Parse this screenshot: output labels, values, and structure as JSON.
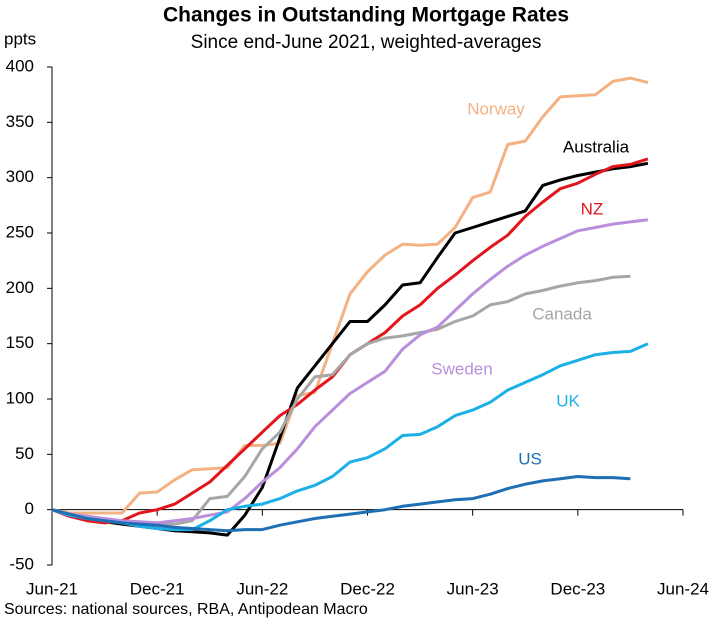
{
  "chart_data": {
    "type": "line",
    "title": "Changes in Outstanding Mortgage Rates",
    "subtitle": "Since end-June 2021, weighted-averages",
    "y_label": "ppts",
    "source": "Sources: national sources, RBA, Antipodean Macro",
    "x": [
      "2021-06",
      "2021-07",
      "2021-08",
      "2021-09",
      "2021-10",
      "2021-11",
      "2021-12",
      "2022-01",
      "2022-02",
      "2022-03",
      "2022-04",
      "2022-05",
      "2022-06",
      "2022-07",
      "2022-08",
      "2022-09",
      "2022-10",
      "2022-11",
      "2022-12",
      "2023-01",
      "2023-02",
      "2023-03",
      "2023-04",
      "2023-05",
      "2023-06",
      "2023-07",
      "2023-08",
      "2023-09",
      "2023-10",
      "2023-11",
      "2023-12",
      "2024-01",
      "2024-02",
      "2024-03",
      "2024-04"
    ],
    "xlim": [
      "2021-06",
      "2024-06"
    ],
    "xticks": [
      {
        "value": "2021-06",
        "label": "Jun-21"
      },
      {
        "value": "2021-12",
        "label": "Dec-21"
      },
      {
        "value": "2022-06",
        "label": "Jun-22"
      },
      {
        "value": "2022-12",
        "label": "Dec-22"
      },
      {
        "value": "2023-06",
        "label": "Jun-23"
      },
      {
        "value": "2023-12",
        "label": "Dec-23"
      },
      {
        "value": "2024-06",
        "label": "Jun-24"
      }
    ],
    "ylim": [
      -50,
      400
    ],
    "yticks": [
      -50,
      0,
      50,
      100,
      150,
      200,
      250,
      300,
      350,
      400
    ],
    "series": [
      {
        "name": "Norway",
        "color": "#f4b183",
        "values": [
          0,
          -3,
          -3,
          -3,
          -3,
          15,
          16,
          27,
          36,
          37,
          38,
          58,
          58,
          60,
          103,
          106,
          150,
          195,
          215,
          230,
          240,
          239,
          240,
          255,
          282,
          287,
          330,
          333,
          355,
          373,
          374,
          375,
          387,
          390,
          386
        ]
      },
      {
        "name": "Australia",
        "color": "#000000",
        "values": [
          0,
          -5,
          -8,
          -11,
          -13,
          -15,
          -17,
          -19,
          -20,
          -21,
          -23,
          -5,
          20,
          65,
          110,
          130,
          150,
          170,
          170,
          185,
          203,
          205,
          228,
          250,
          255,
          260,
          265,
          270,
          293,
          298,
          302,
          305,
          308,
          310,
          313
        ]
      },
      {
        "name": "NZ",
        "color": "#e3151c",
        "values": [
          0,
          -6,
          -10,
          -12,
          -10,
          -3,
          0,
          5,
          15,
          25,
          40,
          55,
          70,
          85,
          95,
          108,
          120,
          140,
          150,
          160,
          175,
          185,
          200,
          212,
          225,
          237,
          248,
          265,
          278,
          290,
          295,
          303,
          310,
          312,
          317
        ]
      },
      {
        "name": "Canada",
        "color": "#a6a6a6",
        "values": [
          0,
          -5,
          -8,
          -10,
          -12,
          -13,
          -12,
          -13,
          -10,
          10,
          12,
          30,
          55,
          70,
          100,
          120,
          122,
          140,
          150,
          155,
          157,
          160,
          163,
          170,
          175,
          185,
          188,
          195,
          198,
          202,
          205,
          207,
          210,
          211,
          null
        ]
      },
      {
        "name": "Sweden",
        "color": "#b98fdc",
        "values": [
          0,
          -4,
          -6,
          -8,
          -10,
          -11,
          -12,
          -10,
          -8,
          -5,
          -2,
          10,
          25,
          38,
          55,
          75,
          90,
          105,
          115,
          125,
          145,
          158,
          165,
          180,
          195,
          208,
          220,
          230,
          238,
          245,
          252,
          255,
          258,
          260,
          262
        ]
      },
      {
        "name": "UK",
        "color": "#1cb0e6",
        "values": [
          0,
          -5,
          -8,
          -10,
          -12,
          -15,
          -17,
          -18,
          -18,
          -10,
          0,
          3,
          5,
          10,
          17,
          22,
          30,
          43,
          47,
          55,
          67,
          68,
          75,
          85,
          90,
          97,
          108,
          115,
          122,
          130,
          135,
          140,
          142,
          143,
          150
        ]
      },
      {
        "name": "US",
        "color": "#1f6fb4",
        "values": [
          0,
          -4,
          -8,
          -10,
          -12,
          -13,
          -14,
          -16,
          -17,
          -18,
          -19,
          -18,
          -18,
          -14,
          -11,
          -8,
          -6,
          -4,
          -2,
          0,
          3,
          5,
          7,
          9,
          10,
          14,
          19,
          23,
          26,
          28,
          30,
          29,
          29,
          28,
          null
        ]
      }
    ]
  }
}
